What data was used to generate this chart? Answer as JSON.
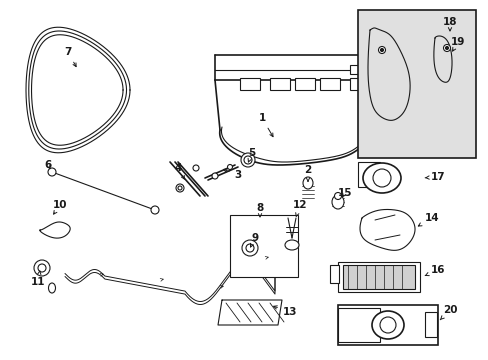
{
  "bg_color": "#ffffff",
  "line_color": "#1a1a1a",
  "box_fill": "#e0e0e0",
  "fig_width": 4.89,
  "fig_height": 3.6,
  "dpi": 100
}
